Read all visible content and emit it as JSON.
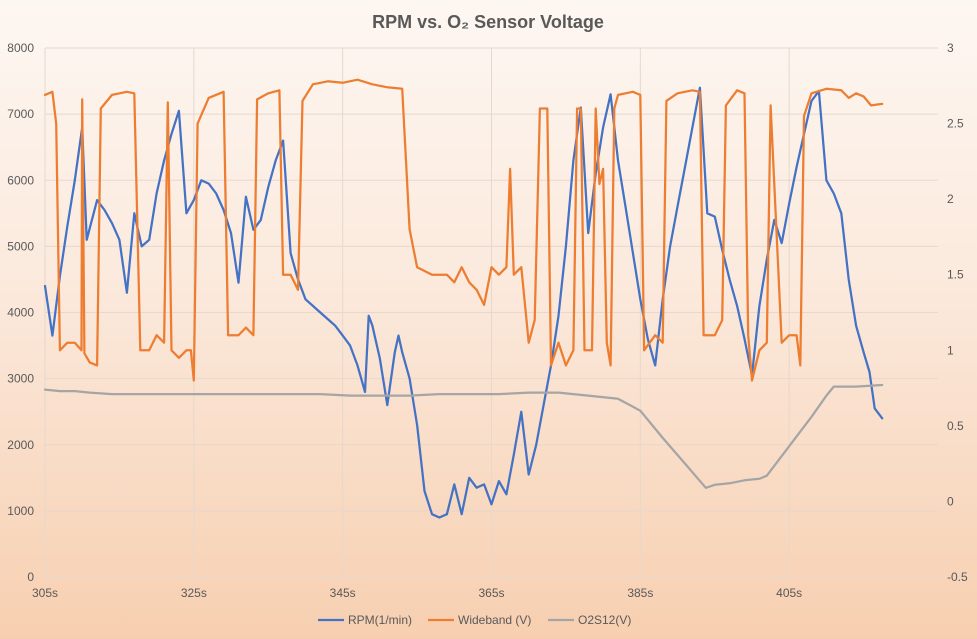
{
  "chart_data": {
    "type": "line",
    "title": "RPM vs. O₂ Sensor Voltage",
    "xlabel": "",
    "ylabel": "",
    "grid": true,
    "legend_position": "bottom",
    "x_axis": {
      "range": [
        305,
        425
      ],
      "ticks": [
        305,
        325,
        345,
        365,
        385,
        405
      ],
      "tick_labels": [
        "305s",
        "325s",
        "345s",
        "365s",
        "385s",
        "405s"
      ]
    },
    "y_left": {
      "range": [
        0,
        8000
      ],
      "ticks": [
        0,
        1000,
        2000,
        3000,
        4000,
        5000,
        6000,
        7000,
        8000
      ],
      "tick_labels": [
        "0",
        "1000",
        "2000",
        "3000",
        "4000",
        "5000",
        "6000",
        "7000",
        "8000"
      ]
    },
    "y_right": {
      "range": [
        -0.5,
        3
      ],
      "ticks": [
        -0.5,
        0,
        0.5,
        1,
        1.5,
        2,
        2.5,
        3
      ],
      "tick_labels": [
        "-0.5",
        "0",
        "0.5",
        "1",
        "1.5",
        "2",
        "2.5",
        "3"
      ]
    },
    "series": [
      {
        "name": "RPM(1/min)",
        "axis": "left",
        "color": "#4472c4",
        "points": [
          [
            305,
            4400
          ],
          [
            306,
            3650
          ],
          [
            307,
            4550
          ],
          [
            308,
            5300
          ],
          [
            309,
            6000
          ],
          [
            310,
            6800
          ],
          [
            310.6,
            5100
          ],
          [
            312,
            5700
          ],
          [
            313,
            5550
          ],
          [
            314,
            5350
          ],
          [
            315,
            5100
          ],
          [
            316,
            4300
          ],
          [
            317,
            5500
          ],
          [
            318,
            5000
          ],
          [
            319,
            5100
          ],
          [
            320,
            5800
          ],
          [
            321,
            6300
          ],
          [
            322,
            6700
          ],
          [
            323,
            7050
          ],
          [
            324,
            5500
          ],
          [
            325,
            5700
          ],
          [
            326,
            6000
          ],
          [
            327,
            5950
          ],
          [
            328,
            5800
          ],
          [
            329,
            5550
          ],
          [
            330,
            5200
          ],
          [
            331,
            4450
          ],
          [
            332,
            5750
          ],
          [
            333,
            5250
          ],
          [
            334,
            5400
          ],
          [
            335,
            5900
          ],
          [
            336,
            6300
          ],
          [
            337,
            6600
          ],
          [
            338,
            4900
          ],
          [
            339,
            4500
          ],
          [
            340,
            4200
          ],
          [
            341,
            4100
          ],
          [
            342,
            4000
          ],
          [
            343,
            3900
          ],
          [
            344,
            3800
          ],
          [
            345,
            3650
          ],
          [
            346,
            3500
          ],
          [
            347,
            3200
          ],
          [
            348,
            2800
          ],
          [
            348.5,
            3950
          ],
          [
            349,
            3800
          ],
          [
            350,
            3300
          ],
          [
            351,
            2600
          ],
          [
            352,
            3400
          ],
          [
            352.5,
            3650
          ],
          [
            353,
            3400
          ],
          [
            354,
            3000
          ],
          [
            355,
            2300
          ],
          [
            356,
            1300
          ],
          [
            357,
            950
          ],
          [
            358,
            900
          ],
          [
            359,
            950
          ],
          [
            360,
            1400
          ],
          [
            361,
            950
          ],
          [
            362,
            1500
          ],
          [
            363,
            1350
          ],
          [
            364,
            1400
          ],
          [
            365,
            1100
          ],
          [
            366,
            1450
          ],
          [
            367,
            1250
          ],
          [
            368,
            1850
          ],
          [
            369,
            2500
          ],
          [
            370,
            1550
          ],
          [
            371,
            2000
          ],
          [
            372,
            2600
          ],
          [
            373,
            3200
          ],
          [
            374,
            3950
          ],
          [
            375,
            5000
          ],
          [
            376,
            6300
          ],
          [
            377,
            7100
          ],
          [
            378,
            5200
          ],
          [
            379,
            6100
          ],
          [
            380,
            6800
          ],
          [
            381,
            7300
          ],
          [
            382,
            6300
          ],
          [
            383,
            5600
          ],
          [
            384,
            4900
          ],
          [
            385,
            4200
          ],
          [
            386,
            3600
          ],
          [
            387,
            3200
          ],
          [
            388,
            4200
          ],
          [
            389,
            5000
          ],
          [
            390,
            5600
          ],
          [
            391,
            6200
          ],
          [
            392,
            6800
          ],
          [
            393,
            7400
          ],
          [
            394,
            5500
          ],
          [
            395,
            5450
          ],
          [
            396,
            4950
          ],
          [
            397,
            4500
          ],
          [
            398,
            4100
          ],
          [
            399,
            3600
          ],
          [
            400,
            3050
          ],
          [
            401,
            4100
          ],
          [
            402,
            4800
          ],
          [
            403,
            5400
          ],
          [
            404,
            5050
          ],
          [
            405,
            5650
          ],
          [
            406,
            6200
          ],
          [
            407,
            6700
          ],
          [
            408,
            7200
          ],
          [
            409,
            7350
          ],
          [
            410,
            6000
          ],
          [
            411,
            5800
          ],
          [
            412,
            5500
          ],
          [
            413,
            4500
          ],
          [
            414,
            3800
          ],
          [
            415,
            3400
          ],
          [
            415.8,
            3100
          ],
          [
            416.5,
            2550
          ],
          [
            417.5,
            2400
          ]
        ]
      },
      {
        "name": "Wideband (V)",
        "axis": "right",
        "color": "#ed7d31",
        "points": [
          [
            305,
            2.69
          ],
          [
            306,
            2.71
          ],
          [
            306.5,
            2.5
          ],
          [
            307,
            1.0
          ],
          [
            308,
            1.05
          ],
          [
            309,
            1.05
          ],
          [
            309.9,
            1.0
          ],
          [
            310,
            2.66
          ],
          [
            310.3,
            0.98
          ],
          [
            311,
            0.92
          ],
          [
            312,
            0.9
          ],
          [
            312.5,
            2.6
          ],
          [
            314,
            2.69
          ],
          [
            316,
            2.71
          ],
          [
            317,
            2.7
          ],
          [
            317.8,
            1.0
          ],
          [
            319,
            1.0
          ],
          [
            320,
            1.1
          ],
          [
            321,
            1.05
          ],
          [
            321.5,
            2.64
          ],
          [
            322,
            1.0
          ],
          [
            323,
            0.95
          ],
          [
            324,
            1.0
          ],
          [
            324.6,
            1.0
          ],
          [
            325,
            0.8
          ],
          [
            325.5,
            2.5
          ],
          [
            327,
            2.67
          ],
          [
            329,
            2.71
          ],
          [
            329.6,
            1.1
          ],
          [
            331,
            1.1
          ],
          [
            332,
            1.15
          ],
          [
            333,
            1.1
          ],
          [
            333.5,
            2.66
          ],
          [
            335,
            2.7
          ],
          [
            336.5,
            2.72
          ],
          [
            337,
            1.5
          ],
          [
            338,
            1.5
          ],
          [
            339,
            1.4
          ],
          [
            339.6,
            2.65
          ],
          [
            341,
            2.76
          ],
          [
            343,
            2.78
          ],
          [
            345,
            2.77
          ],
          [
            347,
            2.79
          ],
          [
            349,
            2.76
          ],
          [
            351,
            2.74
          ],
          [
            353,
            2.73
          ],
          [
            354,
            1.8
          ],
          [
            355,
            1.55
          ],
          [
            357,
            1.5
          ],
          [
            359,
            1.5
          ],
          [
            360,
            1.45
          ],
          [
            361,
            1.55
          ],
          [
            362,
            1.45
          ],
          [
            363,
            1.4
          ],
          [
            364,
            1.3
          ],
          [
            365,
            1.55
          ],
          [
            366,
            1.5
          ],
          [
            367,
            1.55
          ],
          [
            367.5,
            2.2
          ],
          [
            368,
            1.5
          ],
          [
            369,
            1.55
          ],
          [
            370,
            1.05
          ],
          [
            370.8,
            1.2
          ],
          [
            371.5,
            2.6
          ],
          [
            372.5,
            2.6
          ],
          [
            373,
            0.9
          ],
          [
            374,
            1.05
          ],
          [
            375,
            0.9
          ],
          [
            376,
            1.0
          ],
          [
            376.5,
            2.6
          ],
          [
            377,
            2.6
          ],
          [
            377.5,
            1.0
          ],
          [
            378.5,
            1.0
          ],
          [
            379,
            2.6
          ],
          [
            379.5,
            2.1
          ],
          [
            380,
            2.2
          ],
          [
            380.5,
            1.05
          ],
          [
            381,
            0.9
          ],
          [
            381.5,
            2.6
          ],
          [
            382,
            2.69
          ],
          [
            384,
            2.71
          ],
          [
            385,
            2.69
          ],
          [
            385.5,
            1.0
          ],
          [
            387,
            1.1
          ],
          [
            388,
            1.05
          ],
          [
            388.5,
            2.65
          ],
          [
            390,
            2.7
          ],
          [
            392,
            2.72
          ],
          [
            393,
            2.71
          ],
          [
            393.5,
            1.1
          ],
          [
            395,
            1.1
          ],
          [
            396,
            1.2
          ],
          [
            396.5,
            2.62
          ],
          [
            398,
            2.72
          ],
          [
            399,
            2.7
          ],
          [
            399.5,
            1.1
          ],
          [
            400,
            0.8
          ],
          [
            401,
            1.0
          ],
          [
            402,
            1.05
          ],
          [
            402.5,
            2.62
          ],
          [
            404,
            1.05
          ],
          [
            405,
            1.1
          ],
          [
            406,
            1.1
          ],
          [
            406.5,
            0.9
          ],
          [
            407,
            2.55
          ],
          [
            408,
            2.7
          ],
          [
            410,
            2.73
          ],
          [
            412,
            2.72
          ],
          [
            413,
            2.67
          ],
          [
            414,
            2.7
          ],
          [
            415,
            2.68
          ],
          [
            416,
            2.62
          ],
          [
            417.5,
            2.63
          ]
        ]
      },
      {
        "name": "O2S12(V)",
        "axis": "right",
        "color": "#a5a5a5",
        "points": [
          [
            305,
            0.74
          ],
          [
            307,
            0.73
          ],
          [
            309,
            0.73
          ],
          [
            311,
            0.72
          ],
          [
            314,
            0.71
          ],
          [
            318,
            0.71
          ],
          [
            322,
            0.71
          ],
          [
            326,
            0.71
          ],
          [
            330,
            0.71
          ],
          [
            334,
            0.71
          ],
          [
            338,
            0.71
          ],
          [
            342,
            0.71
          ],
          [
            346,
            0.7
          ],
          [
            350,
            0.7
          ],
          [
            354,
            0.7
          ],
          [
            358,
            0.71
          ],
          [
            362,
            0.71
          ],
          [
            366,
            0.71
          ],
          [
            370,
            0.72
          ],
          [
            374,
            0.72
          ],
          [
            378,
            0.7
          ],
          [
            382,
            0.68
          ],
          [
            385,
            0.6
          ],
          [
            388,
            0.42
          ],
          [
            391,
            0.25
          ],
          [
            393.8,
            0.09
          ],
          [
            395,
            0.11
          ],
          [
            397,
            0.12
          ],
          [
            399,
            0.14
          ],
          [
            401,
            0.15
          ],
          [
            402,
            0.17
          ],
          [
            404,
            0.3
          ],
          [
            406,
            0.43
          ],
          [
            408,
            0.56
          ],
          [
            410,
            0.7
          ],
          [
            411,
            0.76
          ],
          [
            414,
            0.76
          ],
          [
            417.5,
            0.77
          ]
        ]
      }
    ]
  }
}
